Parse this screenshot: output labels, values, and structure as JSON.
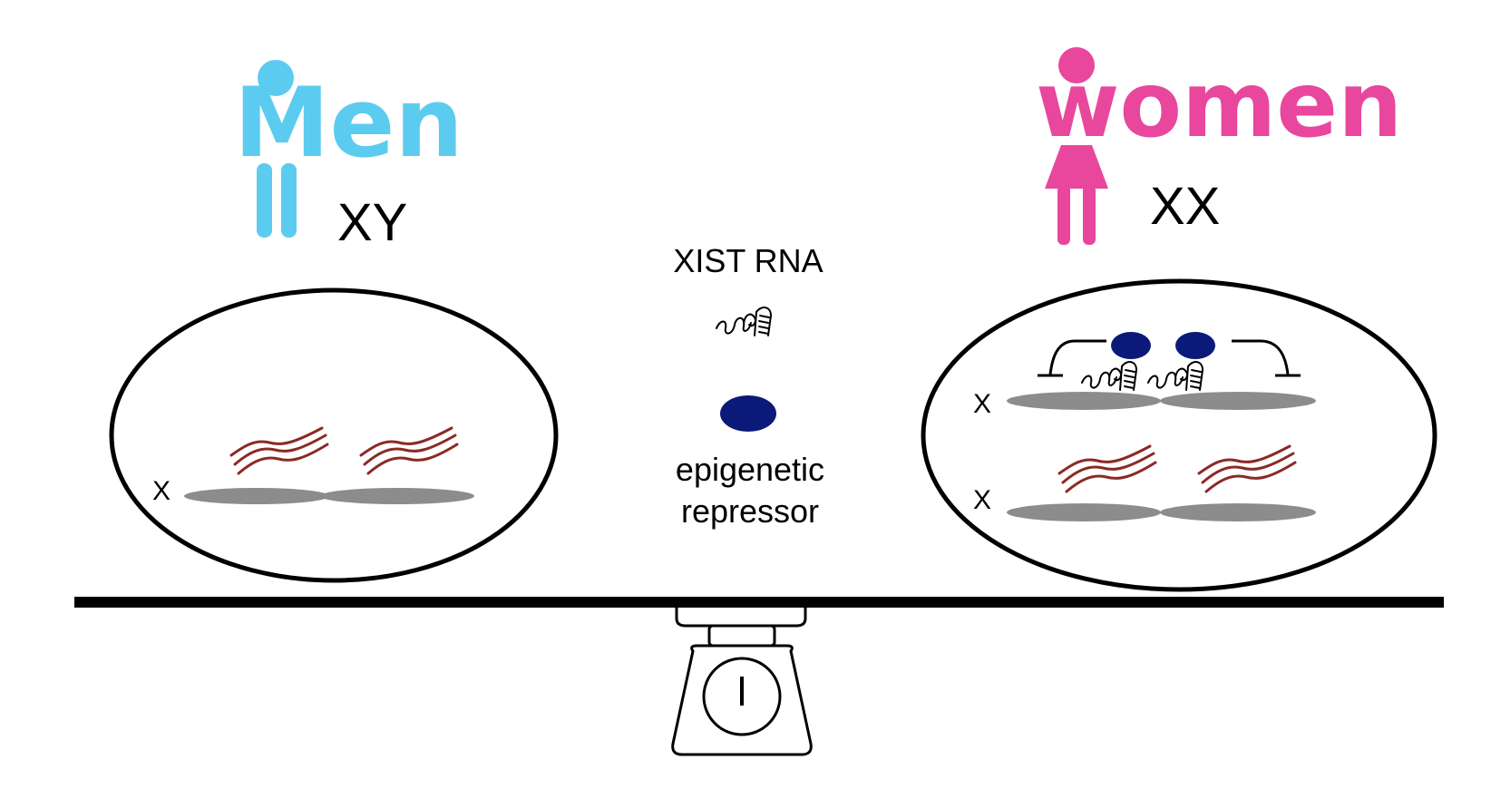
{
  "men": {
    "title": "Men",
    "genotype": "XY",
    "chromosome_label": "X"
  },
  "women": {
    "title": "women",
    "genotype": "XX",
    "chromosome_labels": [
      "X",
      "X"
    ]
  },
  "legend": {
    "xist_label": "XIST RNA",
    "repressor_label_line1": "epigenetic",
    "repressor_label_line2": "repressor"
  },
  "colors": {
    "men": "#5ccbf0",
    "women": "#e8479d",
    "chromosome": "#8c8c8c",
    "transcript": "#8b2a24",
    "repressor": "#0b1a78"
  },
  "icons": {
    "men_figure": "man-figure-icon",
    "women_figure": "woman-figure-icon",
    "scale": "kitchen-scale-icon",
    "xist_rna": "rna-strand-icon"
  }
}
